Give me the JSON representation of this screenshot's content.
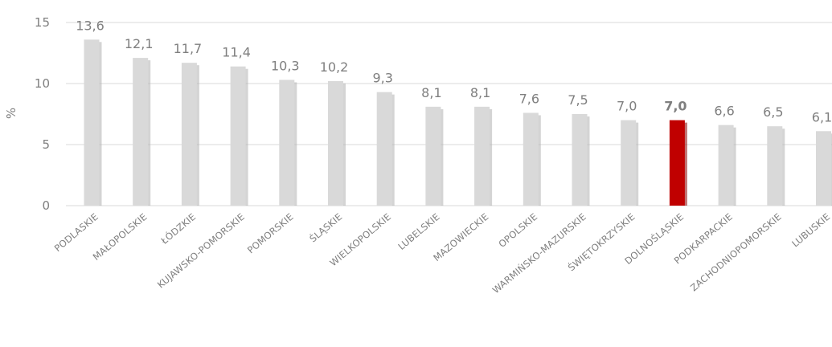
{
  "chart_data": {
    "type": "bar",
    "ylabel": "%",
    "ylim": [
      0,
      15
    ],
    "yticks": [
      "0",
      "5",
      "10",
      "15"
    ],
    "grid": true,
    "categories": [
      "PODLASKIE",
      "MAŁOPOLSKIE",
      "ŁÓDZKIE",
      "KUJAWSKO-POMORSKIE",
      "POMORSKIE",
      "ŚLĄSKIE",
      "WIELKOPOLSKIE",
      "LUBELSKIE",
      "MAZOWIECKIE",
      "OPOLSKIE",
      "WARMIŃSKO-MAZURSKIE",
      "ŚWIĘTOKRZYSKIE",
      "DOLNOŚLĄSKIE",
      "PODKARPACKIE",
      "ZACHODNIOPOMORSKIE",
      "LUBUSKIE"
    ],
    "values": [
      13.6,
      12.1,
      11.7,
      11.4,
      10.3,
      10.2,
      9.3,
      8.1,
      8.1,
      7.6,
      7.5,
      7.0,
      7.0,
      6.6,
      6.5,
      6.1
    ],
    "value_labels": [
      "13,6",
      "12,1",
      "11,7",
      "11,4",
      "10,3",
      "10,2",
      "9,3",
      "8,1",
      "8,1",
      "7,6",
      "7,5",
      "7,0",
      "7,0",
      "6,6",
      "6,5",
      "6,1"
    ],
    "highlight_index": 12,
    "colors": {
      "bar": "#d9d9d9",
      "bar_shadow": "#b0b0b0",
      "highlight": "#c00000",
      "highlight_shadow": "#8b0000",
      "highlight_label": "#c00000",
      "text": "#7f7f7f",
      "grid": "#d9d9d9"
    }
  }
}
